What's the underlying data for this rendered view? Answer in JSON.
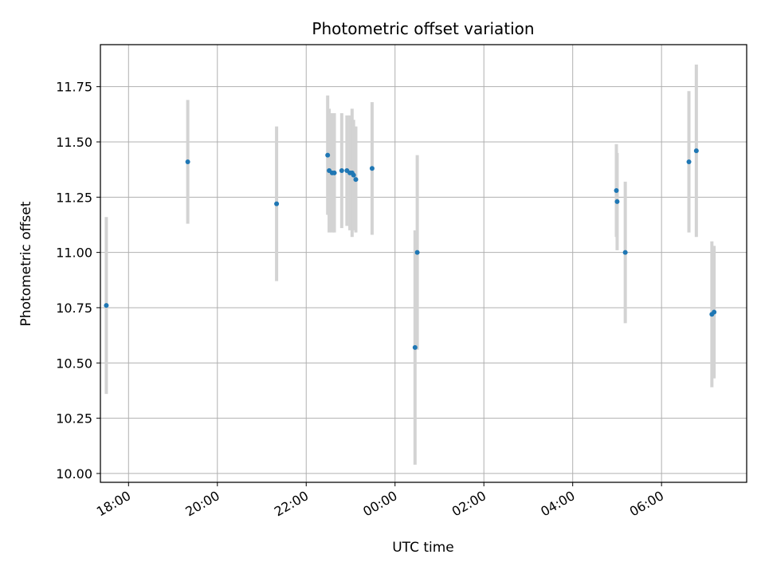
{
  "chart_data": {
    "type": "scatter",
    "title": "Photometric offset variation",
    "xlabel": "UTC time",
    "ylabel": "Photometric offset",
    "x_axis": {
      "kind": "time",
      "start": "17:22",
      "end": "07:55",
      "ticks": [
        "18:00",
        "20:00",
        "22:00",
        "00:00",
        "02:00",
        "04:00",
        "06:00"
      ],
      "tick_label_rotation_deg": 30
    },
    "ylim": [
      9.96,
      11.94
    ],
    "yticks": [
      "10.00",
      "10.25",
      "10.50",
      "10.75",
      "11.00",
      "11.25",
      "11.50",
      "11.75"
    ],
    "grid": true,
    "point_color": "#1f77b4",
    "errorbar_color": "#d3d3d3",
    "series": [
      {
        "points": [
          {
            "time": "17:30",
            "y": 10.76,
            "err": 0.4
          },
          {
            "time": "19:20",
            "y": 11.41,
            "err": 0.28
          },
          {
            "time": "21:20",
            "y": 11.22,
            "err": 0.35
          },
          {
            "time": "22:29",
            "y": 11.44,
            "err": 0.27
          },
          {
            "time": "22:31",
            "y": 11.37,
            "err": 0.28
          },
          {
            "time": "22:35",
            "y": 11.36,
            "err": 0.27
          },
          {
            "time": "22:38",
            "y": 11.36,
            "err": 0.27
          },
          {
            "time": "22:48",
            "y": 11.37,
            "err": 0.26
          },
          {
            "time": "22:55",
            "y": 11.37,
            "err": 0.25
          },
          {
            "time": "22:59",
            "y": 11.36,
            "err": 0.26
          },
          {
            "time": "23:02",
            "y": 11.36,
            "err": 0.29
          },
          {
            "time": "23:04",
            "y": 11.35,
            "err": 0.25
          },
          {
            "time": "23:07",
            "y": 11.33,
            "err": 0.24
          },
          {
            "time": "23:29",
            "y": 11.38,
            "err": 0.3
          },
          {
            "time": "00:27",
            "y": 10.57,
            "err": 0.53
          },
          {
            "time": "00:30",
            "y": 11.0,
            "err": 0.44
          },
          {
            "time": "04:59",
            "y": 11.28,
            "err": 0.21
          },
          {
            "time": "05:00",
            "y": 11.23,
            "err": 0.22
          },
          {
            "time": "05:11",
            "y": 11.0,
            "err": 0.32
          },
          {
            "time": "06:37",
            "y": 11.41,
            "err": 0.32
          },
          {
            "time": "06:47",
            "y": 11.46,
            "err": 0.39
          },
          {
            "time": "07:08",
            "y": 10.72,
            "err": 0.33
          },
          {
            "time": "07:11",
            "y": 10.73,
            "err": 0.3
          }
        ]
      }
    ]
  }
}
